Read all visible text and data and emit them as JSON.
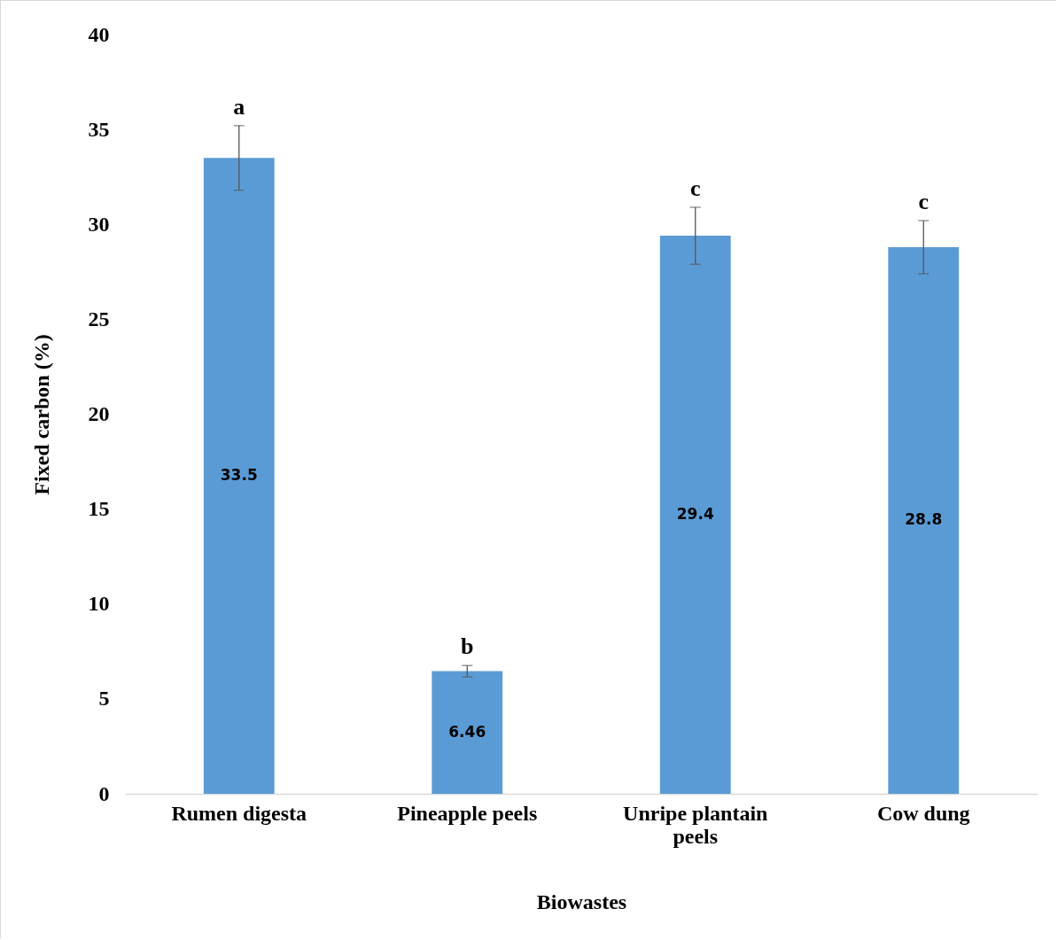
{
  "chart_data": {
    "type": "bar",
    "xlabel": "Biowastes",
    "ylabel": "Fixed carbon (%)",
    "categories": [
      "Rumen digesta",
      "Pineapple peels",
      "Unripe plantain peels",
      "Cow dung"
    ],
    "values": [
      33.5,
      6.46,
      29.4,
      28.8
    ],
    "errors": [
      1.7,
      0.3,
      1.5,
      1.4
    ],
    "color": "#5b9bd5",
    "data_labels": true,
    "ylim": [
      0,
      40
    ],
    "yticks": [
      0,
      5,
      10,
      15,
      20,
      25,
      30,
      35,
      40
    ],
    "grid": false,
    "annotations": [
      "a",
      "b",
      "c",
      "c"
    ]
  }
}
